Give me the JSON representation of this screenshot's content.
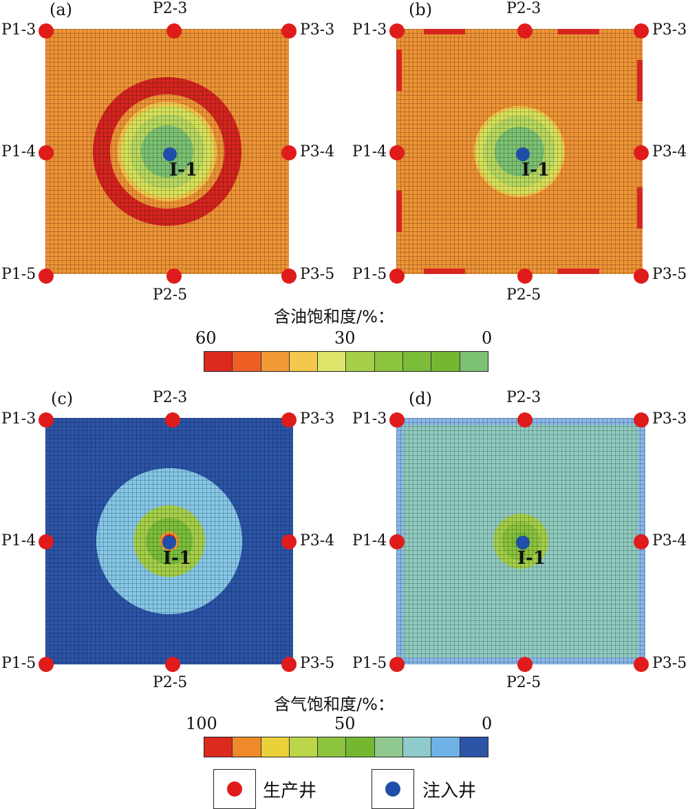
{
  "panels": {
    "a": {
      "label": "(a)",
      "wells": {
        "p1_3": "P1-3",
        "p2_3": "P2-3",
        "p3_3": "P3-3",
        "p1_4": "P1-4",
        "p3_4": "P3-4",
        "p1_5": "P1-5",
        "p2_5": "P2-5",
        "p3_5": "P3-5",
        "i1": "I-1"
      },
      "colors": {
        "base": "#ef9436",
        "ring": "#d6251f",
        "transition": "#d8e35a",
        "core": "#7cc273"
      }
    },
    "b": {
      "label": "(b)",
      "wells": {
        "p1_3": "P1-3",
        "p2_3": "P2-3",
        "p3_3": "P3-3",
        "p1_4": "P1-4",
        "p3_4": "P3-4",
        "p1_5": "P1-5",
        "p2_5": "P2-5",
        "p3_5": "P3-5",
        "i1": "I-1"
      },
      "colors": {
        "base": "#ef9436",
        "edge": "#d6251f",
        "transition": "#d8e35a",
        "core": "#7cc273"
      }
    },
    "c": {
      "label": "(c)",
      "wells": {
        "p1_3": "P1-3",
        "p2_3": "P2-3",
        "p3_3": "P3-3",
        "p1_4": "P1-4",
        "p3_4": "P3-4",
        "p1_5": "P1-5",
        "p2_5": "P2-5",
        "p3_5": "P3-5",
        "i1": "I-1"
      },
      "colors": {
        "base": "#2c55a8",
        "halo": "#86c8e8",
        "green": "#7cbf3b",
        "core": "#e0231c"
      }
    },
    "d": {
      "label": "(d)",
      "wells": {
        "p1_3": "P1-3",
        "p2_3": "P2-3",
        "p3_3": "P3-3",
        "p1_4": "P1-4",
        "p3_4": "P3-4",
        "p1_5": "P1-5",
        "p2_5": "P2-5",
        "p3_5": "P3-5",
        "i1": "I-1"
      },
      "colors": {
        "base": "#8fcbbf",
        "edge": "#8ab8ea",
        "green": "#7cbf3b"
      }
    }
  },
  "oil_colorbar": {
    "title": "含油饱和度/%：",
    "ticks": {
      "left": "60",
      "mid": "30",
      "right": "0"
    },
    "colors": [
      "#dd2a1f",
      "#ee5e24",
      "#f29a37",
      "#f2c94c",
      "#dde46a",
      "#a6d04a",
      "#8cc43e",
      "#7bbd38",
      "#74b832",
      "#7cc273"
    ]
  },
  "gas_colorbar": {
    "title": "含气饱和度/%：",
    "ticks": {
      "left": "100",
      "mid": "50",
      "right": "0"
    },
    "colors": [
      "#dd2a1f",
      "#ef8a2b",
      "#ead13a",
      "#bcd64a",
      "#8cc43e",
      "#74b832",
      "#8fc88e",
      "#8fcbcb",
      "#6fb2e8",
      "#2c55a8"
    ]
  },
  "legend": {
    "producer": {
      "label": "生产井",
      "color": "#e01b1b"
    },
    "injector": {
      "label": "注入井",
      "color": "#1f4fa8"
    }
  }
}
